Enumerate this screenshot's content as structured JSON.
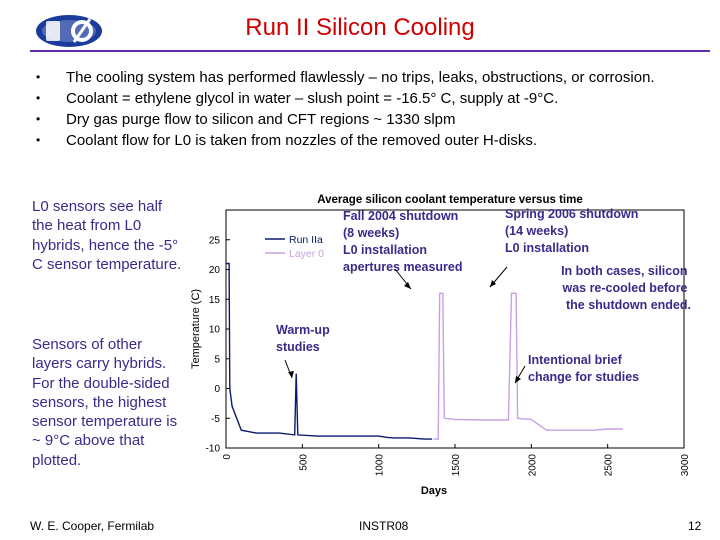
{
  "slide": {
    "title": "Run II Silicon Cooling",
    "logo": {
      "icon": "d0-logo"
    },
    "bullets": [
      {
        "text": "The cooling system has performed flawlessly – no trips, leaks, obstructions, or corrosion."
      },
      {
        "text": "Coolant = ethylene glycol in water – slush point = -16.5° C, supply at -9°C."
      },
      {
        "text": "Dry gas purge flow to silicon and CFT regions ~ 1330 slpm"
      },
      {
        "text": "Coolant flow for L0 is taken from nozzles of the removed outer H-disks."
      }
    ],
    "side_notes": [
      "L0 sensors see half the heat from L0 hybrids, hence the -5° C sensor temperature.",
      "Sensors of other layers carry hybrids.  For the double-sided sensors, the highest sensor temperature is ~ 9°C above that plotted."
    ],
    "footer": {
      "left": "W. E. Cooper, Fermilab",
      "center": "INSTR08",
      "page": "12"
    }
  },
  "chart_data": {
    "type": "line",
    "title": "Average silicon coolant temperature versus time",
    "xlabel": "Days",
    "ylabel": "Temperature (C)",
    "xlim": [
      0,
      3000
    ],
    "ylim": [
      -10,
      30
    ],
    "xticks": [
      "0",
      "500",
      "1000",
      "1500",
      "2000",
      "2500",
      "3000"
    ],
    "yticks": [
      "-10",
      "-5",
      "0",
      "5",
      "10",
      "15",
      "20",
      "25"
    ],
    "legend_position": "top-left",
    "series": [
      {
        "name": "Run IIa",
        "color": "#0a1a6e",
        "points": [
          [
            0,
            21
          ],
          [
            20,
            21
          ],
          [
            25,
            0
          ],
          [
            40,
            -3
          ],
          [
            100,
            -7
          ],
          [
            200,
            -7.5
          ],
          [
            350,
            -7.5
          ],
          [
            450,
            -7.8
          ],
          [
            460,
            2.5
          ],
          [
            470,
            -7.8
          ],
          [
            600,
            -8
          ],
          [
            800,
            -8
          ],
          [
            1000,
            -8
          ],
          [
            1050,
            -8.2
          ],
          [
            1100,
            -8.3
          ],
          [
            1200,
            -8.3
          ],
          [
            1300,
            -8.5
          ],
          [
            1350,
            -8.5
          ]
        ]
      },
      {
        "name": "Layer 0",
        "color": "#c8a0e0",
        "points": [
          [
            1360,
            -8.5
          ],
          [
            1390,
            -8.5
          ],
          [
            1400,
            16
          ],
          [
            1420,
            16
          ],
          [
            1430,
            -5
          ],
          [
            1500,
            -5.2
          ],
          [
            1700,
            -5.3
          ],
          [
            1850,
            -5.3
          ],
          [
            1870,
            16
          ],
          [
            1900,
            16
          ],
          [
            1910,
            -5
          ],
          [
            2000,
            -5.2
          ],
          [
            2100,
            -7
          ],
          [
            2200,
            -7
          ],
          [
            2400,
            -7
          ],
          [
            2500,
            -6.8
          ],
          [
            2600,
            -6.8
          ]
        ]
      }
    ],
    "annotations": [
      {
        "text": "Fall 2004 shutdown\n(8 weeks)\nL0 installation\napertures measured"
      },
      {
        "text": "Spring 2006 shutdown\n(14 weeks)\nL0 installation"
      },
      {
        "text": "In both cases, silicon\nwas re-cooled before\nthe shutdown ended."
      },
      {
        "text": "Warm-up\nstudies"
      },
      {
        "text": "Intentional brief\nchange for studies"
      }
    ]
  }
}
